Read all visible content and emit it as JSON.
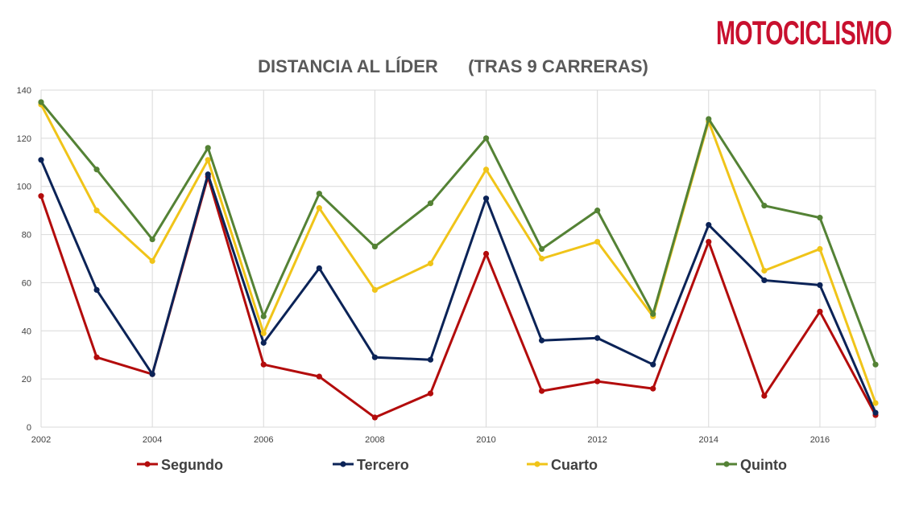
{
  "logo": {
    "text": "MOTOCICLISMO",
    "color": "#c8102e"
  },
  "chart_data": {
    "type": "line",
    "title": "DISTANCIA AL LÍDER",
    "subtitle": "(TRAS 9 CARRERAS)",
    "xlabel": "",
    "ylabel": "",
    "x": [
      2002,
      2003,
      2004,
      2005,
      2006,
      2007,
      2008,
      2009,
      2010,
      2011,
      2012,
      2013,
      2014,
      2015,
      2016,
      2017
    ],
    "x_ticks": [
      "2002",
      "2004",
      "2006",
      "2008",
      "2010",
      "2012",
      "2014",
      "2016"
    ],
    "y_ticks": [
      "0",
      "20",
      "40",
      "60",
      "80",
      "100",
      "120",
      "140"
    ],
    "xlim": [
      2002,
      2017
    ],
    "ylim": [
      0,
      140
    ],
    "grid": "on",
    "legend_position": "bottom",
    "series": [
      {
        "name": "Segundo",
        "color": "#b30c0c",
        "values": [
          96,
          29,
          22,
          104,
          26,
          21,
          4,
          14,
          72,
          15,
          19,
          16,
          77,
          13,
          48,
          5
        ]
      },
      {
        "name": "Tercero",
        "color": "#0b2357",
        "values": [
          111,
          57,
          22,
          105,
          35,
          66,
          29,
          28,
          95,
          36,
          37,
          26,
          84,
          61,
          59,
          6
        ]
      },
      {
        "name": "Cuarto",
        "color": "#f0c419",
        "values": [
          134,
          90,
          69,
          111,
          39,
          91,
          57,
          68,
          107,
          70,
          77,
          46,
          127,
          65,
          74,
          10
        ]
      },
      {
        "name": "Quinto",
        "color": "#548235",
        "values": [
          135,
          107,
          78,
          116,
          46,
          97,
          75,
          93,
          120,
          74,
          90,
          47,
          128,
          92,
          87,
          26
        ]
      }
    ]
  }
}
